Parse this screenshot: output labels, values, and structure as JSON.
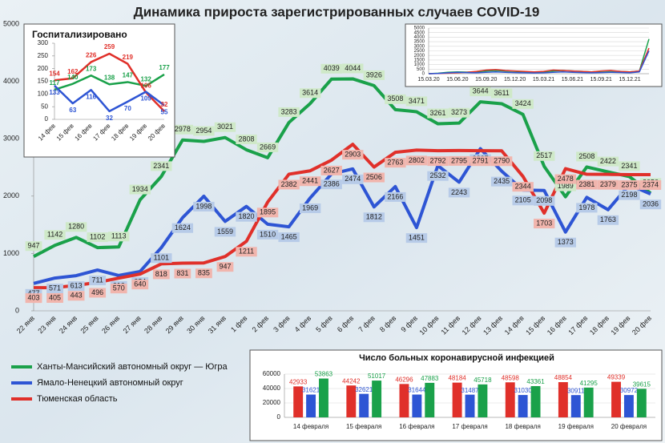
{
  "chart_data": [
    {
      "type": "line",
      "title": "Динамика прироста зарегистрированных случаев COVID-19",
      "categories": [
        "22 янв",
        "23 янв",
        "24 янв",
        "25 янв",
        "26 янв",
        "27 янв",
        "28 янв",
        "29 янв",
        "30 янв",
        "31 янв",
        "1 фев",
        "2 фев",
        "3 фев",
        "4 фев",
        "5 фев",
        "6 фев",
        "7 фев",
        "8 фев",
        "9 фев",
        "10 фев",
        "11 фев",
        "12 фев",
        "13 фев",
        "14 фев",
        "15 фев",
        "16 фев",
        "17 фев",
        "18 фев",
        "19 фев",
        "20 фев"
      ],
      "series": [
        {
          "name": "Ханты-Мансийский автономный округ — Югра",
          "color": "#1aa14a",
          "values": [
            947,
            1142,
            1280,
            1102,
            1113,
            1934,
            2341,
            2978,
            2954,
            3021,
            2808,
            2669,
            3283,
            3614,
            4039,
            4044,
            3926,
            3508,
            3471,
            3261,
            3273,
            3644,
            3611,
            3424,
            2517,
            1989,
            2508,
            2422,
            2341,
            2050
          ]
        },
        {
          "name": "Ямало-Ненецкий автономный округ",
          "color": "#2e55d4",
          "values": [
            477,
            571,
            613,
            711,
            616,
            684,
            1101,
            1624,
            1998,
            1559,
            1820,
            1510,
            1465,
            1969,
            2386,
            2474,
            1812,
            2166,
            1451,
            2532,
            2243,
            2827,
            2435,
            2105,
            2098,
            1373,
            1978,
            1763,
            2198,
            2036
          ]
        },
        {
          "name": "Тюменская область",
          "color": "#e0302a",
          "values": [
            403,
            405,
            443,
            496,
            570,
            640,
            818,
            831,
            835,
            947,
            1211,
            1895,
            2382,
            2441,
            2627,
            2903,
            2506,
            2763,
            2802,
            2792,
            2795,
            2791,
            2790,
            2344,
            1703,
            2478,
            2381,
            2379,
            2375,
            2374
          ]
        }
      ],
      "ylim": [
        0,
        5000
      ],
      "yticks": [
        0,
        1000,
        2000,
        3000,
        4000,
        5000
      ],
      "legend": "bottom-left"
    },
    {
      "type": "line",
      "title": "Госпитализировано",
      "categories": [
        "14 фев",
        "15 фев",
        "16 фев",
        "17 фев",
        "18 фев",
        "19 фев",
        "20 фев"
      ],
      "series": [
        {
          "color": "#1aa14a",
          "values": [
            117,
            140,
            173,
            138,
            147,
            132,
            177
          ]
        },
        {
          "color": "#e0302a",
          "values": [
            154,
            162,
            226,
            259,
            219,
            106,
            32
          ]
        },
        {
          "color": "#2e55d4",
          "values": [
            133,
            63,
            116,
            32,
            70,
            109,
            55
          ]
        }
      ],
      "ylim": [
        0,
        300
      ],
      "yticks": [
        0,
        50,
        100,
        150,
        200,
        250,
        300
      ]
    },
    {
      "type": "line",
      "categories": [
        "15.03.20",
        null,
        null,
        "15.06.20",
        null,
        null,
        "15.09.20",
        null,
        null,
        "15.12.20",
        null,
        null,
        "15.03.21",
        null,
        null,
        "15.06.21",
        null,
        null,
        "15.09.21",
        null,
        null,
        "15.12.21",
        null,
        null
      ],
      "series": [
        {
          "color": "#1aa14a",
          "values": [
            0,
            50,
            150,
            200,
            180,
            200,
            300,
            350,
            300,
            250,
            200,
            180,
            200,
            300,
            350,
            300,
            250,
            200,
            250,
            300,
            250,
            200,
            300,
            3800
          ]
        },
        {
          "color": "#e0302a",
          "values": [
            0,
            20,
            60,
            100,
            150,
            250,
            400,
            450,
            350,
            300,
            250,
            200,
            250,
            400,
            350,
            300,
            250,
            200,
            300,
            350,
            250,
            200,
            300,
            2800
          ]
        },
        {
          "color": "#2e55d4",
          "values": [
            0,
            30,
            100,
            150,
            120,
            100,
            150,
            200,
            150,
            120,
            100,
            80,
            100,
            150,
            200,
            150,
            120,
            100,
            120,
            150,
            130,
            100,
            200,
            2500
          ]
        }
      ],
      "ylim": [
        0,
        5000
      ],
      "yticks": [
        0,
        500,
        1000,
        1500,
        2000,
        2500,
        3000,
        3500,
        4000,
        4500,
        5000
      ],
      "grid": true
    },
    {
      "type": "bar",
      "title": "Число больных коронавирусной инфекцией",
      "categories": [
        "14 февраля",
        "15 февраля",
        "16 февраля",
        "17 февраля",
        "18 февраля",
        "19 февраля",
        "20 февраля"
      ],
      "series": [
        {
          "color": "#e0302a",
          "values": [
            42933,
            44242,
            46296,
            48184,
            48598,
            48854,
            49339
          ]
        },
        {
          "color": "#2e55d4",
          "values": [
            31621,
            32621,
            31644,
            31487,
            31030,
            30911,
            30972
          ]
        },
        {
          "color": "#1aa14a",
          "values": [
            53863,
            51017,
            47883,
            45718,
            43361,
            41295,
            39615
          ]
        }
      ],
      "ylim": [
        0,
        60000
      ],
      "yticks": [
        0,
        20000,
        40000,
        60000
      ],
      "grid": true
    }
  ]
}
